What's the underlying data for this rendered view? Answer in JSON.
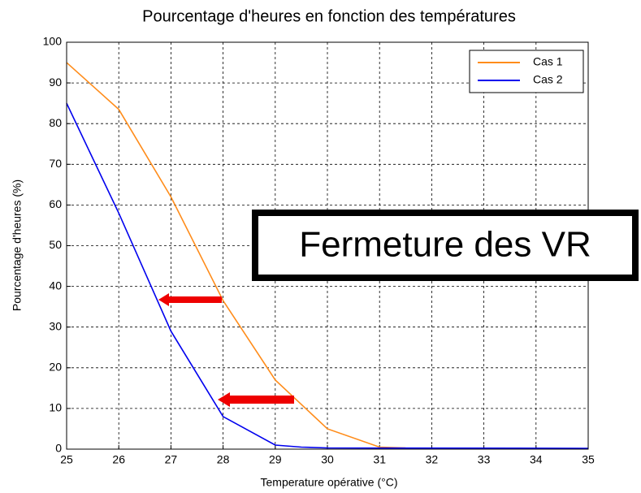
{
  "chart_data": {
    "type": "line",
    "title": "Pourcentage d'heures en fonction des températures",
    "x_label": "Temperature opérative (°C)",
    "y_label": "Pourcentage d'heures (%)",
    "annotation": "Fermeture des VR",
    "series": [
      {
        "name": "Cas 1",
        "color": "#ff8c1a",
        "x": [
          25,
          26,
          27,
          28,
          29,
          30,
          31,
          31.5
        ],
        "values": [
          95,
          83.5,
          62,
          36.5,
          17,
          5,
          0.5,
          0.3
        ]
      },
      {
        "name": "Cas 2",
        "color": "#0000ee",
        "x": [
          25,
          26,
          27,
          28,
          29,
          29.5,
          30,
          35
        ],
        "values": [
          85,
          58,
          29,
          8,
          1,
          0.5,
          0.3,
          0.2
        ]
      }
    ],
    "xlim": [
      25,
      35
    ],
    "xticks": [
      25,
      26,
      27,
      28,
      29,
      30,
      31,
      32,
      33,
      34,
      35
    ],
    "ylim": [
      0,
      100
    ],
    "yticks": [
      0,
      10,
      20,
      30,
      40,
      50,
      60,
      70,
      80,
      90,
      100
    ],
    "grid": true,
    "legend": "northeast"
  }
}
